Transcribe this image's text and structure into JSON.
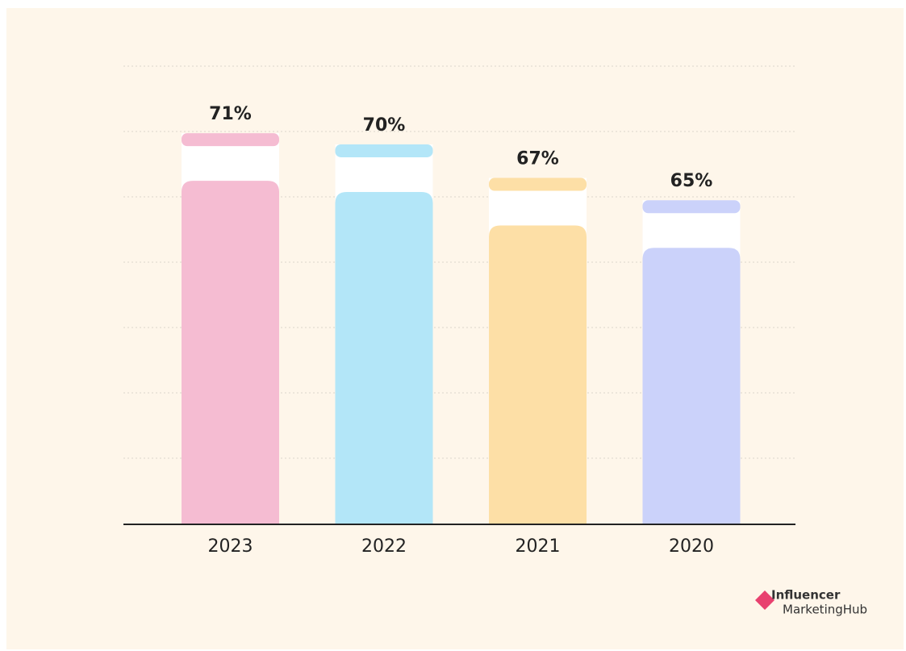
{
  "chart_data": {
    "type": "bar",
    "categories": [
      "2023",
      "2022",
      "2021",
      "2020"
    ],
    "values": [
      71,
      70,
      67,
      65
    ],
    "value_labels": [
      "71%",
      "70%",
      "67%",
      "65%"
    ],
    "colors": [
      "#f5bcd2",
      "#b3e6f8",
      "#fddfa6",
      "#cbd2fa"
    ],
    "ylim": [
      36,
      77
    ]
  },
  "logo": {
    "line1": "Influencer",
    "line2": "MarketingHub"
  }
}
